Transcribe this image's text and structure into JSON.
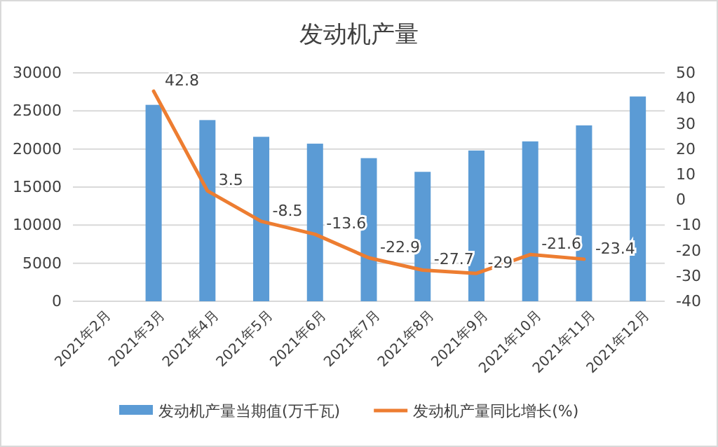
{
  "chart_data": {
    "type": "bar",
    "title": "发动机产量",
    "categories": [
      "2021年2月",
      "2021年3月",
      "2021年4月",
      "2021年5月",
      "2021年6月",
      "2021年7月",
      "2021年8月",
      "2021年9月",
      "2021年10月",
      "2021年11月",
      "2021年12月"
    ],
    "series": [
      {
        "name": "发动机产量当期值(万千瓦)",
        "color": "#5b9bd5",
        "values": [
          null,
          25800,
          23800,
          21600,
          20700,
          18800,
          17000,
          19800,
          21000,
          23100,
          26900
        ]
      },
      {
        "name": "发动机产量同比增长(%)",
        "type": "line",
        "axis": "y2",
        "color": "#ed7d31",
        "values": [
          null,
          42.8,
          3.5,
          -8.5,
          -13.6,
          -22.9,
          -27.7,
          -29,
          -21.6,
          -23.4,
          null
        ],
        "value_labels": [
          null,
          "42.8",
          "3.5",
          "-8.5",
          "-13.6",
          "-22.9",
          "-27.7",
          "-29",
          "-21.6",
          "-23.4",
          null
        ]
      }
    ],
    "ylim": [
      0,
      30000
    ],
    "yticks": [
      0,
      5000,
      10000,
      15000,
      20000,
      25000,
      30000
    ],
    "y2lim": [
      -40,
      50
    ],
    "y2ticks": [
      -40,
      -30,
      -20,
      -10,
      0,
      10,
      20,
      30,
      40,
      50
    ],
    "grid": "y",
    "legend": "bottom"
  }
}
